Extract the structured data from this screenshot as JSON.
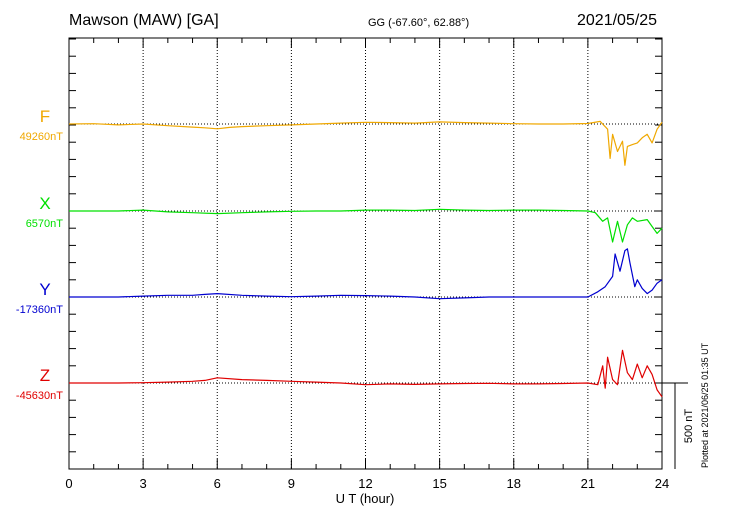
{
  "header": {
    "station": "Mawson (MAW)  [GA]",
    "coords": "GG (-67.60°,  62.88°)",
    "date": "2021/05/25"
  },
  "footer": {
    "plotted": "Plotted at 2021/06/25 01:35 UT",
    "scale_label": "500 nT"
  },
  "chart_data": {
    "type": "line",
    "xlabel": "U T (hour)",
    "xlim": [
      0,
      24
    ],
    "x_ticks": [
      0,
      3,
      6,
      9,
      12,
      15,
      18,
      21,
      24
    ],
    "scale_nT": 500,
    "grid": "dotted vertical lines every 3 hours",
    "series": [
      {
        "name": "F",
        "baseline_label": "49260nT",
        "color": "#f0a800",
        "points": [
          [
            0,
            0
          ],
          [
            1,
            2
          ],
          [
            2,
            -5
          ],
          [
            3,
            0
          ],
          [
            4,
            -10
          ],
          [
            5,
            -18
          ],
          [
            5.5,
            -22
          ],
          [
            6,
            -28
          ],
          [
            6.5,
            -20
          ],
          [
            7,
            -15
          ],
          [
            8,
            -10
          ],
          [
            9,
            -5
          ],
          [
            10,
            0
          ],
          [
            11,
            5
          ],
          [
            12,
            10
          ],
          [
            13,
            8
          ],
          [
            14,
            5
          ],
          [
            15,
            12
          ],
          [
            16,
            8
          ],
          [
            17,
            5
          ],
          [
            18,
            2
          ],
          [
            19,
            0
          ],
          [
            20,
            0
          ],
          [
            21,
            3
          ],
          [
            21.5,
            15
          ],
          [
            21.8,
            -30
          ],
          [
            21.9,
            -200
          ],
          [
            22,
            -60
          ],
          [
            22.2,
            -160
          ],
          [
            22.4,
            -100
          ],
          [
            22.5,
            -240
          ],
          [
            22.6,
            -130
          ],
          [
            22.8,
            -120
          ],
          [
            23,
            -110
          ],
          [
            23.2,
            -80
          ],
          [
            23.4,
            -60
          ],
          [
            23.6,
            -110
          ],
          [
            23.8,
            -30
          ],
          [
            24,
            10
          ]
        ]
      },
      {
        "name": "X",
        "baseline_label": "6570nT",
        "color": "#00e000",
        "points": [
          [
            0,
            0
          ],
          [
            2,
            0
          ],
          [
            3,
            5
          ],
          [
            4,
            -5
          ],
          [
            5,
            -10
          ],
          [
            6,
            -15
          ],
          [
            7,
            -10
          ],
          [
            8,
            -5
          ],
          [
            9,
            -2
          ],
          [
            10,
            0
          ],
          [
            11,
            0
          ],
          [
            12,
            5
          ],
          [
            13,
            5
          ],
          [
            14,
            3
          ],
          [
            15,
            10
          ],
          [
            16,
            5
          ],
          [
            17,
            3
          ],
          [
            18,
            5
          ],
          [
            19,
            5
          ],
          [
            20,
            3
          ],
          [
            21,
            0
          ],
          [
            21.3,
            -10
          ],
          [
            21.6,
            -60
          ],
          [
            21.8,
            -40
          ],
          [
            22,
            -180
          ],
          [
            22.2,
            -60
          ],
          [
            22.4,
            -180
          ],
          [
            22.6,
            -80
          ],
          [
            22.8,
            -40
          ],
          [
            23,
            -60
          ],
          [
            23.4,
            -50
          ],
          [
            23.6,
            -90
          ],
          [
            23.8,
            -130
          ],
          [
            24,
            -100
          ]
        ]
      },
      {
        "name": "Y",
        "baseline_label": "-17360nT",
        "color": "#0000d0",
        "points": [
          [
            0,
            0
          ],
          [
            2,
            0
          ],
          [
            3,
            5
          ],
          [
            4,
            10
          ],
          [
            5,
            10
          ],
          [
            5.5,
            15
          ],
          [
            6,
            20
          ],
          [
            7,
            10
          ],
          [
            8,
            5
          ],
          [
            9,
            2
          ],
          [
            10,
            5
          ],
          [
            11,
            10
          ],
          [
            12,
            8
          ],
          [
            13,
            5
          ],
          [
            14,
            0
          ],
          [
            15,
            -10
          ],
          [
            16,
            -5
          ],
          [
            17,
            0
          ],
          [
            18,
            0
          ],
          [
            19,
            0
          ],
          [
            20,
            0
          ],
          [
            21,
            0
          ],
          [
            21.4,
            30
          ],
          [
            21.7,
            60
          ],
          [
            22,
            120
          ],
          [
            22.1,
            250
          ],
          [
            22.3,
            150
          ],
          [
            22.5,
            270
          ],
          [
            22.6,
            280
          ],
          [
            22.7,
            200
          ],
          [
            22.9,
            60
          ],
          [
            23,
            100
          ],
          [
            23.2,
            50
          ],
          [
            23.4,
            20
          ],
          [
            23.6,
            40
          ],
          [
            23.8,
            80
          ],
          [
            24,
            100
          ]
        ]
      },
      {
        "name": "Z",
        "baseline_label": "-45630nT",
        "color": "#e00000",
        "points": [
          [
            0,
            0
          ],
          [
            2,
            0
          ],
          [
            3,
            2
          ],
          [
            4,
            5
          ],
          [
            5,
            10
          ],
          [
            5.5,
            15
          ],
          [
            6,
            30
          ],
          [
            7,
            20
          ],
          [
            8,
            15
          ],
          [
            9,
            10
          ],
          [
            10,
            5
          ],
          [
            11,
            0
          ],
          [
            12,
            -10
          ],
          [
            13,
            -5
          ],
          [
            14,
            -8
          ],
          [
            15,
            -5
          ],
          [
            16,
            -3
          ],
          [
            17,
            -2
          ],
          [
            18,
            -5
          ],
          [
            19,
            -5
          ],
          [
            20,
            -3
          ],
          [
            21,
            0
          ],
          [
            21.4,
            -10
          ],
          [
            21.6,
            100
          ],
          [
            21.7,
            -30
          ],
          [
            21.8,
            150
          ],
          [
            22,
            20
          ],
          [
            22.2,
            -10
          ],
          [
            22.4,
            190
          ],
          [
            22.6,
            60
          ],
          [
            22.8,
            20
          ],
          [
            23,
            110
          ],
          [
            23.2,
            30
          ],
          [
            23.4,
            100
          ],
          [
            23.6,
            50
          ],
          [
            23.8,
            -40
          ],
          [
            24,
            -80
          ]
        ]
      }
    ]
  }
}
